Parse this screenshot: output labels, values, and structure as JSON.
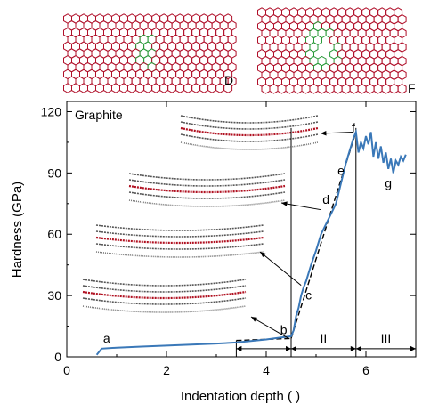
{
  "panel_labels": {
    "top_left": "D",
    "top_right": "F"
  },
  "chart_data": {
    "type": "line",
    "title": "Graphite",
    "xlabel": "Indentation depth (   )",
    "ylabel": "Hardness (GPa)",
    "xlim": [
      0,
      7
    ],
    "ylim": [
      0,
      125
    ],
    "xticks": [
      0,
      2,
      4,
      6
    ],
    "yticks": [
      0,
      30,
      60,
      90,
      120
    ],
    "grid": false,
    "series": [
      {
        "color": "#3a78b8",
        "x": [
          0.6,
          0.7,
          1.0,
          1.5,
          2.0,
          2.5,
          3.0,
          3.4,
          3.6,
          4.0,
          4.3,
          4.5,
          4.55,
          4.6,
          4.65,
          4.7,
          4.75,
          4.8,
          4.9,
          5.0,
          5.1,
          5.2,
          5.3,
          5.4,
          5.5,
          5.6,
          5.7,
          5.75,
          5.8,
          5.85,
          5.9,
          5.95,
          6.0,
          6.05,
          6.1,
          6.15,
          6.2,
          6.25,
          6.3,
          6.35,
          6.4,
          6.45,
          6.5,
          6.55,
          6.6,
          6.65,
          6.7,
          6.75,
          6.8
        ],
        "y": [
          1,
          4,
          4.5,
          5,
          5.5,
          6,
          6.5,
          7,
          7.5,
          8.5,
          9.5,
          10,
          13,
          20,
          24,
          30,
          34,
          37,
          45,
          52,
          60,
          65,
          70,
          75,
          85,
          95,
          103,
          107,
          110,
          100,
          105,
          102,
          108,
          104,
          110,
          98,
          105,
          97,
          103,
          95,
          100,
          92,
          97,
          90,
          96,
          94,
          98,
          96,
          99
        ]
      }
    ],
    "fit_segments": [
      {
        "x": [
          3.4,
          4.5
        ],
        "y": [
          8,
          9
        ]
      },
      {
        "x": [
          4.5,
          5.8
        ],
        "y": [
          9,
          110
        ]
      }
    ],
    "vertical_lines": [
      4.5,
      5.8
    ],
    "regions": [
      {
        "label": "II",
        "from": 4.5,
        "to": 5.8
      },
      {
        "label": "III",
        "from": 5.8,
        "to": 7.0
      }
    ],
    "annotations": [
      {
        "label": "a",
        "x": 0.8,
        "y": 7
      },
      {
        "label": "b",
        "x": 4.35,
        "y": 11
      },
      {
        "label": "c",
        "x": 4.85,
        "y": 28
      },
      {
        "label": "d",
        "x": 5.2,
        "y": 75
      },
      {
        "label": "e",
        "x": 5.5,
        "y": 89
      },
      {
        "label": "f",
        "x": 5.75,
        "y": 110
      },
      {
        "label": "g",
        "x": 6.45,
        "y": 83
      }
    ]
  }
}
